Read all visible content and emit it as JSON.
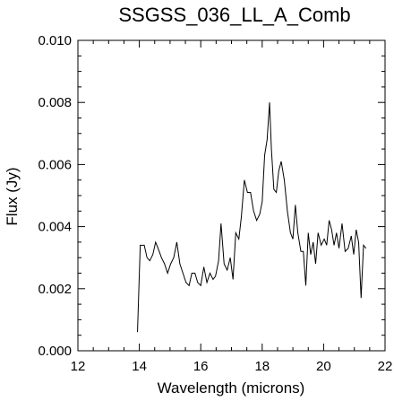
{
  "chart_data": {
    "type": "line",
    "title": "SSGSS_036_LL_A_Comb",
    "xlabel": "Wavelength (microns)",
    "ylabel": "Flux (Jy)",
    "xlim": [
      12,
      22
    ],
    "ylim": [
      0.0,
      0.01
    ],
    "xticks": [
      12,
      14,
      16,
      18,
      20,
      22
    ],
    "xtick_labels": [
      "12",
      "14",
      "16",
      "18",
      "20",
      "22"
    ],
    "yticks": [
      0.0,
      0.002,
      0.004,
      0.006,
      0.008,
      0.01
    ],
    "ytick_labels": [
      "0.000",
      "0.002",
      "0.004",
      "0.006",
      "0.008",
      "0.010"
    ],
    "grid": false,
    "series": [
      {
        "x": [
          13.94,
          14.03,
          14.16,
          14.25,
          14.34,
          14.44,
          14.53,
          14.61,
          14.72,
          14.82,
          14.92,
          15.02,
          15.12,
          15.22,
          15.32,
          15.42,
          15.52,
          15.62,
          15.71,
          15.81,
          15.9,
          16.0,
          16.1,
          16.2,
          16.3,
          16.4,
          16.48,
          16.58,
          16.66,
          16.76,
          16.86,
          16.96,
          17.05,
          17.14,
          17.24,
          17.32,
          17.42,
          17.52,
          17.62,
          17.72,
          17.82,
          17.92,
          18.0,
          18.08,
          18.16,
          18.24,
          18.3,
          18.38,
          18.46,
          18.54,
          18.62,
          18.72,
          18.82,
          18.92,
          19.0,
          19.08,
          19.16,
          19.26,
          19.34,
          19.42,
          19.5,
          19.58,
          19.66,
          19.74,
          19.82,
          19.92,
          20.02,
          20.1,
          20.18,
          20.26,
          20.34,
          20.42,
          20.5,
          20.6,
          20.7,
          20.8,
          20.9,
          20.98,
          21.06,
          21.14,
          21.22,
          21.3,
          21.38
        ],
        "y": [
          0.0006,
          0.0034,
          0.0034,
          0.003,
          0.0029,
          0.0031,
          0.0035,
          0.0033,
          0.003,
          0.0028,
          0.0025,
          0.0028,
          0.003,
          0.0035,
          0.0028,
          0.0025,
          0.0022,
          0.0021,
          0.0025,
          0.0025,
          0.0022,
          0.0021,
          0.0027,
          0.0022,
          0.0025,
          0.0023,
          0.0024,
          0.0029,
          0.0041,
          0.0028,
          0.0026,
          0.003,
          0.0023,
          0.0038,
          0.0036,
          0.0043,
          0.0055,
          0.0051,
          0.0051,
          0.0045,
          0.0042,
          0.0044,
          0.0048,
          0.0063,
          0.0068,
          0.008,
          0.0065,
          0.0052,
          0.0051,
          0.0058,
          0.0061,
          0.0055,
          0.0045,
          0.0038,
          0.0036,
          0.0047,
          0.0038,
          0.0032,
          0.0032,
          0.0021,
          0.0038,
          0.0031,
          0.0035,
          0.0028,
          0.0038,
          0.0034,
          0.0036,
          0.0034,
          0.0042,
          0.0039,
          0.0034,
          0.0038,
          0.0033,
          0.0041,
          0.0032,
          0.0033,
          0.0037,
          0.0031,
          0.0039,
          0.0035,
          0.0017,
          0.0034,
          0.0033
        ]
      }
    ]
  }
}
